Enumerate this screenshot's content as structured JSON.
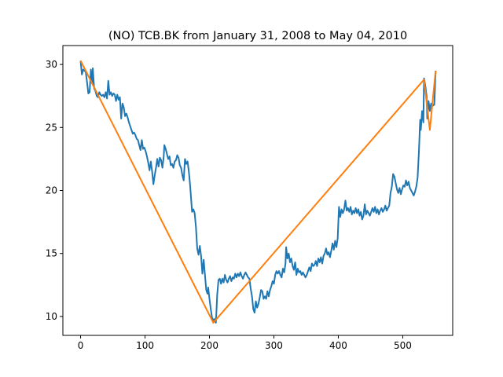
{
  "chart_data": {
    "type": "line",
    "title": "(NO) TCB.BK from January 31, 2008 to May 04, 2010",
    "xlabel": "",
    "ylabel": "",
    "xlim": [
      -27.5,
      577.5
    ],
    "ylim": [
      8.5,
      31.5
    ],
    "xticks": [
      0,
      100,
      200,
      300,
      400,
      500
    ],
    "yticks": [
      10,
      15,
      20,
      25,
      30
    ],
    "grid": false,
    "colors": {
      "price": "#1f77b4",
      "trend": "#ff7f0e"
    },
    "series": [
      {
        "name": "",
        "color": "#1f77b4",
        "points": [
          [
            0,
            30.3
          ],
          [
            2,
            29.2
          ],
          [
            4,
            29.6
          ],
          [
            6,
            29.5
          ],
          [
            8,
            29.4
          ],
          [
            10,
            28.6
          ],
          [
            12,
            27.7
          ],
          [
            14,
            27.8
          ],
          [
            16,
            29.6
          ],
          [
            18,
            28.5
          ],
          [
            19,
            29.7
          ],
          [
            21,
            28.1
          ],
          [
            23,
            27.9
          ],
          [
            25,
            27.5
          ],
          [
            27,
            27.4
          ],
          [
            29,
            27.8
          ],
          [
            31,
            27.6
          ],
          [
            33,
            27.5
          ],
          [
            35,
            27.6
          ],
          [
            37,
            27.4
          ],
          [
            39,
            27.8
          ],
          [
            41,
            27.3
          ],
          [
            43,
            28.7
          ],
          [
            45,
            27.6
          ],
          [
            47,
            27.8
          ],
          [
            49,
            27.5
          ],
          [
            51,
            27.7
          ],
          [
            53,
            27.6
          ],
          [
            55,
            27.1
          ],
          [
            57,
            27.6
          ],
          [
            59,
            27.2
          ],
          [
            61,
            27.4
          ],
          [
            63,
            25.7
          ],
          [
            65,
            26.9
          ],
          [
            67,
            26.6
          ],
          [
            69,
            25.9
          ],
          [
            71,
            26.1
          ],
          [
            73,
            25.8
          ],
          [
            75,
            25.4
          ],
          [
            77,
            25.1
          ],
          [
            79,
            24.8
          ],
          [
            81,
            24.5
          ],
          [
            83,
            24.6
          ],
          [
            85,
            24.4
          ],
          [
            87,
            24.1
          ],
          [
            89,
            24.0
          ],
          [
            91,
            23.6
          ],
          [
            93,
            23.2
          ],
          [
            95,
            24.0
          ],
          [
            97,
            23.3
          ],
          [
            99,
            23.4
          ],
          [
            101,
            23.1
          ],
          [
            103,
            22.7
          ],
          [
            105,
            22.2
          ],
          [
            107,
            21.6
          ],
          [
            109,
            22.3
          ],
          [
            111,
            21.5
          ],
          [
            113,
            20.5
          ],
          [
            115,
            21.2
          ],
          [
            117,
            21.8
          ],
          [
            119,
            22.5
          ],
          [
            121,
            21.9
          ],
          [
            123,
            22.6
          ],
          [
            125,
            22.4
          ],
          [
            127,
            21.8
          ],
          [
            129,
            22.7
          ],
          [
            130,
            23.6
          ],
          [
            132,
            23.3
          ],
          [
            134,
            22.9
          ],
          [
            136,
            22.5
          ],
          [
            138,
            22.7
          ],
          [
            140,
            22.0
          ],
          [
            142,
            22.1
          ],
          [
            144,
            21.8
          ],
          [
            146,
            22.3
          ],
          [
            148,
            22.4
          ],
          [
            150,
            22.8
          ],
          [
            152,
            22.6
          ],
          [
            154,
            22.0
          ],
          [
            156,
            21.8
          ],
          [
            158,
            21.2
          ],
          [
            160,
            20.8
          ],
          [
            162,
            22.5
          ],
          [
            164,
            22.1
          ],
          [
            166,
            22.3
          ],
          [
            168,
            21.5
          ],
          [
            170,
            20.4
          ],
          [
            172,
            19.0
          ],
          [
            173,
            18.3
          ],
          [
            175,
            18.5
          ],
          [
            177,
            18.2
          ],
          [
            179,
            17.1
          ],
          [
            181,
            15.4
          ],
          [
            183,
            14.9
          ],
          [
            185,
            15.6
          ],
          [
            187,
            14.8
          ],
          [
            189,
            13.4
          ],
          [
            191,
            14.5
          ],
          [
            193,
            13.3
          ],
          [
            195,
            12.1
          ],
          [
            197,
            11.8
          ],
          [
            198,
            12.3
          ],
          [
            200,
            11.4
          ],
          [
            202,
            10.6
          ],
          [
            204,
            9.9
          ],
          [
            206,
            9.7
          ],
          [
            208,
            9.8
          ],
          [
            210,
            9.5
          ],
          [
            212,
            11.7
          ],
          [
            214,
            12.9
          ],
          [
            216,
            13.0
          ],
          [
            218,
            12.6
          ],
          [
            220,
            13.0
          ],
          [
            222,
            12.7
          ],
          [
            224,
            13.3
          ],
          [
            226,
            12.9
          ],
          [
            228,
            12.7
          ],
          [
            230,
            13.0
          ],
          [
            232,
            13.2
          ],
          [
            234,
            12.8
          ],
          [
            236,
            13.1
          ],
          [
            238,
            13.0
          ],
          [
            240,
            13.4
          ],
          [
            242,
            13.1
          ],
          [
            244,
            13.4
          ],
          [
            246,
            13.2
          ],
          [
            248,
            13.5
          ],
          [
            250,
            13.2
          ],
          [
            252,
            13.0
          ],
          [
            254,
            13.3
          ],
          [
            256,
            13.5
          ],
          [
            258,
            13.3
          ],
          [
            260,
            13.1
          ],
          [
            262,
            13.0
          ],
          [
            264,
            12.2
          ],
          [
            266,
            11.6
          ],
          [
            268,
            10.6
          ],
          [
            270,
            10.3
          ],
          [
            272,
            11.2
          ],
          [
            274,
            10.7
          ],
          [
            276,
            11.0
          ],
          [
            278,
            11.5
          ],
          [
            280,
            12.1
          ],
          [
            282,
            12.0
          ],
          [
            284,
            11.4
          ],
          [
            286,
            11.6
          ],
          [
            288,
            11.4
          ],
          [
            290,
            12.0
          ],
          [
            292,
            11.6
          ],
          [
            294,
            12.1
          ],
          [
            296,
            12.4
          ],
          [
            298,
            12.8
          ],
          [
            300,
            12.6
          ],
          [
            302,
            13.3
          ],
          [
            304,
            13.6
          ],
          [
            306,
            13.4
          ],
          [
            308,
            13.6
          ],
          [
            310,
            13.3
          ],
          [
            312,
            13.1
          ],
          [
            314,
            13.8
          ],
          [
            316,
            13.5
          ],
          [
            318,
            14.2
          ],
          [
            319,
            15.5
          ],
          [
            321,
            14.6
          ],
          [
            323,
            15.0
          ],
          [
            325,
            14.3
          ],
          [
            327,
            14.6
          ],
          [
            329,
            14.0
          ],
          [
            331,
            13.7
          ],
          [
            333,
            14.3
          ],
          [
            335,
            13.3
          ],
          [
            337,
            13.8
          ],
          [
            339,
            13.5
          ],
          [
            341,
            13.6
          ],
          [
            343,
            13.3
          ],
          [
            345,
            13.5
          ],
          [
            347,
            13.3
          ],
          [
            349,
            13.1
          ],
          [
            351,
            13.3
          ],
          [
            353,
            13.6
          ],
          [
            355,
            13.9
          ],
          [
            357,
            13.6
          ],
          [
            359,
            14.2
          ],
          [
            361,
            14.0
          ],
          [
            363,
            14.1
          ],
          [
            365,
            14.4
          ],
          [
            367,
            14.0
          ],
          [
            369,
            14.6
          ],
          [
            371,
            14.3
          ],
          [
            373,
            14.7
          ],
          [
            375,
            14.2
          ],
          [
            377,
            14.8
          ],
          [
            379,
            15.0
          ],
          [
            381,
            15.4
          ],
          [
            383,
            14.9
          ],
          [
            385,
            15.1
          ],
          [
            387,
            14.7
          ],
          [
            389,
            15.2
          ],
          [
            391,
            15.8
          ],
          [
            393,
            15.3
          ],
          [
            395,
            16.0
          ],
          [
            397,
            15.5
          ],
          [
            399,
            16.2
          ],
          [
            401,
            18.7
          ],
          [
            403,
            17.9
          ],
          [
            405,
            18.5
          ],
          [
            407,
            18.2
          ],
          [
            409,
            18.5
          ],
          [
            411,
            19.2
          ],
          [
            413,
            18.4
          ],
          [
            415,
            18.6
          ],
          [
            417,
            18.3
          ],
          [
            419,
            18.7
          ],
          [
            421,
            18.1
          ],
          [
            423,
            18.4
          ],
          [
            425,
            18.2
          ],
          [
            427,
            18.6
          ],
          [
            429,
            18.2
          ],
          [
            431,
            18.5
          ],
          [
            433,
            18.0
          ],
          [
            435,
            18.3
          ],
          [
            437,
            17.7
          ],
          [
            439,
            18.0
          ],
          [
            441,
            18.9
          ],
          [
            443,
            18.1
          ],
          [
            445,
            18.4
          ],
          [
            447,
            18.2
          ],
          [
            449,
            18.0
          ],
          [
            451,
            18.3
          ],
          [
            453,
            18.6
          ],
          [
            455,
            18.3
          ],
          [
            457,
            18.7
          ],
          [
            459,
            18.2
          ],
          [
            461,
            18.5
          ],
          [
            463,
            18.1
          ],
          [
            465,
            18.4
          ],
          [
            467,
            18.6
          ],
          [
            469,
            18.3
          ],
          [
            471,
            18.5
          ],
          [
            473,
            18.8
          ],
          [
            475,
            18.4
          ],
          [
            477,
            18.6
          ],
          [
            479,
            18.8
          ],
          [
            481,
            19.8
          ],
          [
            483,
            20.3
          ],
          [
            485,
            21.3
          ],
          [
            487,
            21.1
          ],
          [
            489,
            20.6
          ],
          [
            491,
            20.1
          ],
          [
            493,
            19.8
          ],
          [
            495,
            20.2
          ],
          [
            497,
            19.7
          ],
          [
            499,
            20.1
          ],
          [
            501,
            20.4
          ],
          [
            503,
            20.3
          ],
          [
            505,
            20.8
          ],
          [
            507,
            20.4
          ],
          [
            509,
            20.7
          ],
          [
            511,
            20.2
          ],
          [
            513,
            20.0
          ],
          [
            515,
            19.8
          ],
          [
            517,
            19.6
          ],
          [
            519,
            19.9
          ],
          [
            521,
            20.3
          ],
          [
            523,
            21.0
          ],
          [
            525,
            23.0
          ],
          [
            527,
            25.6
          ],
          [
            528,
            24.8
          ],
          [
            530,
            26.3
          ],
          [
            532,
            25.4
          ],
          [
            533,
            28.9
          ],
          [
            535,
            28.3
          ],
          [
            537,
            27.5
          ],
          [
            538,
            25.7
          ],
          [
            540,
            27.1
          ],
          [
            542,
            26.3
          ],
          [
            544,
            26.9
          ],
          [
            546,
            26.7
          ],
          [
            548,
            26.8
          ],
          [
            549,
            26.8
          ],
          [
            551,
            29.5
          ]
        ]
      },
      {
        "name": "",
        "color": "#ff7f0e",
        "points": [
          [
            0,
            30.3
          ],
          [
            206,
            9.5
          ],
          [
            533,
            28.8
          ],
          [
            542,
            24.8
          ],
          [
            551,
            29.5
          ]
        ]
      }
    ]
  }
}
